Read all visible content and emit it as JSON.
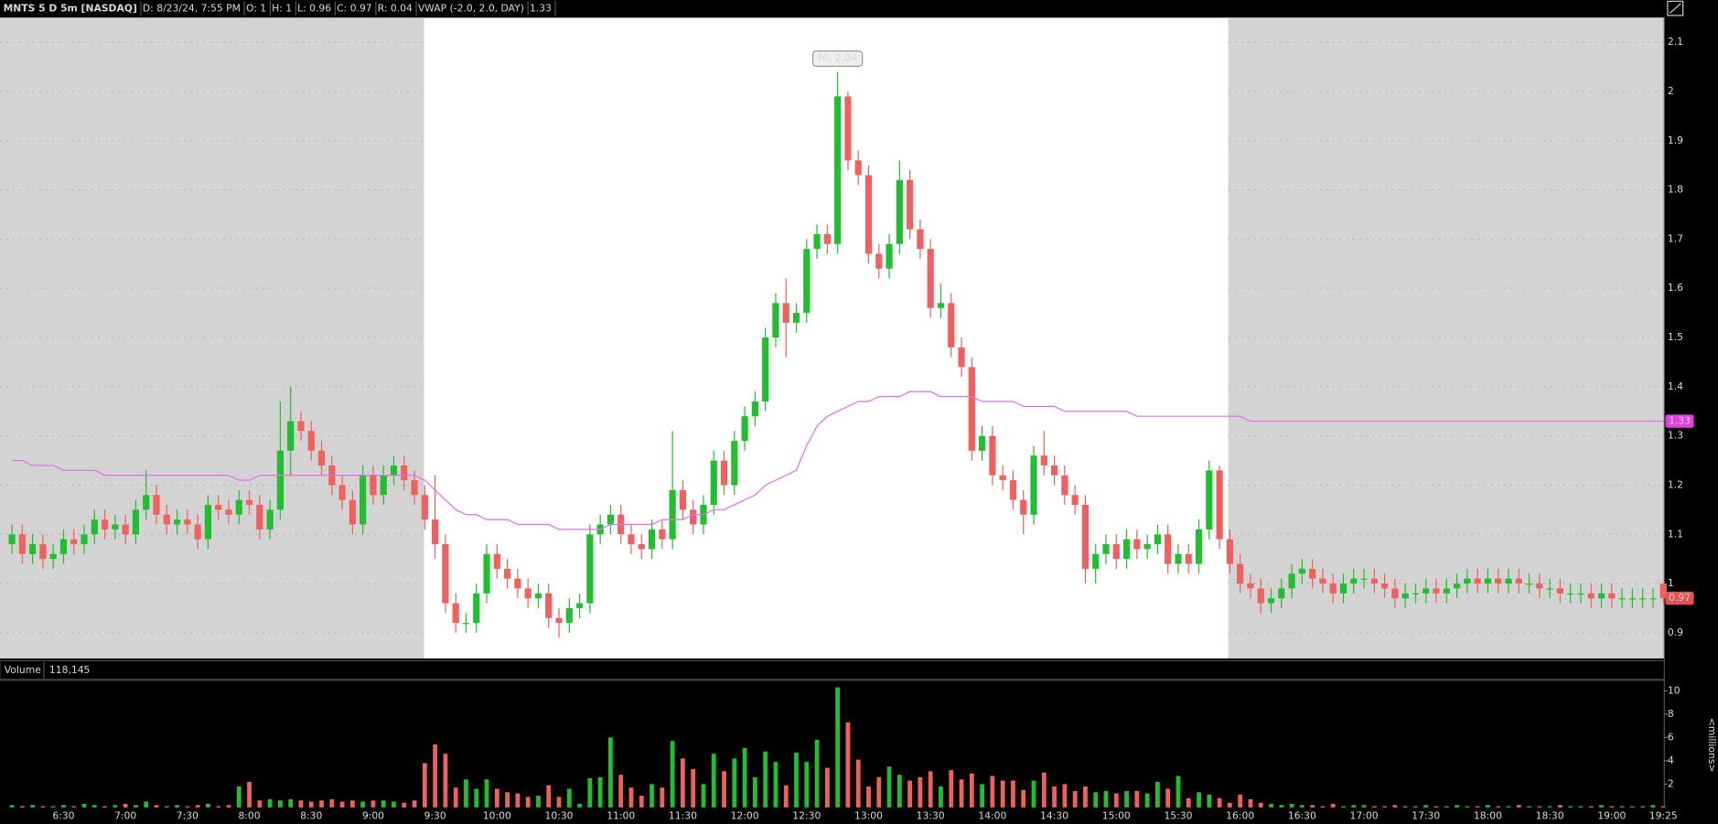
{
  "header": [
    {
      "text": "MNTS 5 D 5m [NASDAQ]",
      "color": "#ffffff"
    },
    {
      "text": "D: 8/23/24, 7:55 PM",
      "color": "#d0d0d0"
    },
    {
      "text": "O: 1",
      "color": "#d0d0d0"
    },
    {
      "text": "H: 1",
      "color": "#d0d0d0"
    },
    {
      "text": "L: 0.96",
      "color": "#d0d0d0"
    },
    {
      "text": "C: 0.97",
      "color": "#d0d0d0"
    },
    {
      "text": "R: 0.04",
      "color": "#d0d0d0"
    },
    {
      "text": "VWAP (-2.0, 2.0, DAY)",
      "color": "#e060e0"
    },
    {
      "text": "1.33",
      "color": "#e060e0"
    }
  ],
  "chart_data": [
    {
      "type": "candlestick",
      "up_color": "#1fbf2f",
      "down_color": "#f25f5f",
      "ylim": [
        0.85,
        2.15
      ],
      "yticks": [
        0.9,
        1,
        1.1,
        1.2,
        1.3,
        1.4,
        1.5,
        1.6,
        1.7,
        1.8,
        1.9,
        2,
        2.1
      ],
      "grid": true,
      "annotation": "Hi: 2.04",
      "price_tags": [
        {
          "value": 1.33,
          "color": "#e040e0"
        },
        {
          "value": 0.97,
          "color": "#e85050"
        }
      ],
      "vwap_color": "#e070e8",
      "open": [
        1.08,
        1.1,
        1.06,
        1.08,
        1.05,
        1.06,
        1.09,
        1.08,
        1.1,
        1.13,
        1.11,
        1.12,
        1.1,
        1.15,
        1.18,
        1.14,
        1.12,
        1.13,
        1.12,
        1.09,
        1.16,
        1.15,
        1.14,
        1.17,
        1.16,
        1.11,
        1.15,
        1.27,
        1.33,
        1.31,
        1.27,
        1.24,
        1.2,
        1.17,
        1.12,
        1.22,
        1.18,
        1.22,
        1.24,
        1.21,
        1.18,
        1.13,
        1.08,
        0.96,
        0.92,
        0.92,
        0.98,
        1.06,
        1.03,
        1.01,
        0.99,
        0.97,
        0.98,
        0.93,
        0.92,
        0.95,
        0.96,
        1.1,
        1.12,
        1.14,
        1.1,
        1.08,
        1.07,
        1.11,
        1.09,
        1.19,
        1.15,
        1.12,
        1.16,
        1.25,
        1.2,
        1.29,
        1.34,
        1.37,
        1.5,
        1.57,
        1.53,
        1.55,
        1.68,
        1.71,
        1.69,
        1.99,
        1.86,
        1.83,
        1.67,
        1.64,
        1.69,
        1.82,
        1.72,
        1.68,
        1.56,
        1.57,
        1.48,
        1.44,
        1.27,
        1.3,
        1.22,
        1.21,
        1.17,
        1.14,
        1.26,
        1.24,
        1.22,
        1.18,
        1.16,
        1.03,
        1.06,
        1.08,
        1.05,
        1.09,
        1.07,
        1.08,
        1.1,
        1.04,
        1.06,
        1.04,
        1.11,
        1.23,
        1.09,
        1.04,
        1.0,
        0.99,
        0.96,
        0.97,
        0.99,
        1.02,
        1.03,
        1.01,
        1.0,
        0.98,
        1.0,
        1.01,
        1.01,
        1.0,
        0.99,
        0.97,
        0.98,
        0.98,
        0.99,
        0.98,
        0.99,
        1.0,
        1.01,
        1.0,
        1.01,
        1.0,
        1.01,
        1.0,
        1.0,
        0.99,
        0.99,
        0.98,
        0.98,
        0.98,
        0.97,
        0.98,
        0.97,
        0.97,
        0.97,
        0.97,
        1.0
      ],
      "high": [
        1.12,
        1.12,
        1.1,
        1.1,
        1.08,
        1.11,
        1.11,
        1.12,
        1.15,
        1.15,
        1.14,
        1.14,
        1.17,
        1.23,
        1.2,
        1.16,
        1.15,
        1.15,
        1.14,
        1.18,
        1.18,
        1.17,
        1.19,
        1.19,
        1.18,
        1.17,
        1.37,
        1.4,
        1.35,
        1.33,
        1.29,
        1.26,
        1.22,
        1.19,
        1.24,
        1.24,
        1.24,
        1.26,
        1.26,
        1.23,
        1.2,
        1.22,
        1.1,
        0.98,
        0.94,
        1.0,
        1.08,
        1.08,
        1.05,
        1.03,
        1.01,
        1.0,
        1.0,
        0.95,
        0.97,
        0.98,
        1.12,
        1.14,
        1.16,
        1.16,
        1.12,
        1.1,
        1.13,
        1.13,
        1.31,
        1.21,
        1.17,
        1.18,
        1.27,
        1.27,
        1.31,
        1.36,
        1.39,
        1.52,
        1.59,
        1.62,
        1.57,
        1.7,
        1.73,
        1.73,
        2.04,
        2.0,
        1.88,
        1.85,
        1.69,
        1.71,
        1.86,
        1.84,
        1.74,
        1.7,
        1.61,
        1.59,
        1.5,
        1.46,
        1.32,
        1.32,
        1.24,
        1.23,
        1.19,
        1.28,
        1.31,
        1.26,
        1.24,
        1.2,
        1.18,
        1.08,
        1.1,
        1.1,
        1.11,
        1.11,
        1.1,
        1.12,
        1.12,
        1.08,
        1.08,
        1.13,
        1.25,
        1.24,
        1.11,
        1.06,
        1.02,
        1.01,
        0.99,
        1.01,
        1.04,
        1.05,
        1.05,
        1.03,
        1.02,
        1.02,
        1.03,
        1.03,
        1.03,
        1.02,
        1.01,
        1.0,
        1.0,
        1.01,
        1.01,
        1.01,
        1.02,
        1.03,
        1.03,
        1.03,
        1.03,
        1.03,
        1.03,
        1.02,
        1.02,
        1.01,
        1.01,
        1.0,
        1.0,
        1.0,
        1.0,
        1.0,
        0.99,
        0.99,
        0.99,
        0.99,
        1.0
      ],
      "low": [
        1.06,
        1.04,
        1.04,
        1.03,
        1.03,
        1.04,
        1.06,
        1.06,
        1.08,
        1.09,
        1.09,
        1.08,
        1.08,
        1.13,
        1.12,
        1.1,
        1.1,
        1.1,
        1.07,
        1.07,
        1.13,
        1.12,
        1.12,
        1.14,
        1.09,
        1.09,
        1.13,
        1.22,
        1.29,
        1.25,
        1.22,
        1.18,
        1.15,
        1.1,
        1.1,
        1.16,
        1.16,
        1.2,
        1.19,
        1.16,
        1.11,
        1.05,
        0.94,
        0.9,
        0.9,
        0.9,
        0.96,
        1.01,
        0.99,
        0.97,
        0.95,
        0.95,
        0.91,
        0.89,
        0.9,
        0.93,
        0.94,
        1.08,
        1.1,
        1.08,
        1.06,
        1.05,
        1.05,
        1.07,
        1.07,
        1.13,
        1.1,
        1.1,
        1.14,
        1.18,
        1.18,
        1.27,
        1.32,
        1.35,
        1.48,
        1.46,
        1.51,
        1.53,
        1.66,
        1.67,
        1.67,
        1.84,
        1.81,
        1.65,
        1.62,
        1.62,
        1.67,
        1.7,
        1.66,
        1.54,
        1.54,
        1.46,
        1.42,
        1.25,
        1.25,
        1.2,
        1.19,
        1.15,
        1.1,
        1.12,
        1.22,
        1.2,
        1.16,
        1.14,
        1.0,
        1.0,
        1.04,
        1.03,
        1.03,
        1.05,
        1.05,
        1.06,
        1.02,
        1.02,
        1.02,
        1.02,
        1.09,
        1.07,
        1.02,
        0.98,
        0.97,
        0.94,
        0.94,
        0.95,
        0.97,
        1.0,
        0.99,
        0.98,
        0.96,
        0.96,
        0.98,
        0.99,
        0.98,
        0.97,
        0.95,
        0.95,
        0.96,
        0.96,
        0.96,
        0.96,
        0.97,
        0.98,
        0.98,
        0.98,
        0.98,
        0.98,
        0.98,
        0.98,
        0.97,
        0.97,
        0.96,
        0.96,
        0.96,
        0.95,
        0.95,
        0.95,
        0.95,
        0.95,
        0.95,
        0.95,
        0.96
      ],
      "close": [
        1.1,
        1.06,
        1.08,
        1.05,
        1.06,
        1.09,
        1.08,
        1.1,
        1.13,
        1.11,
        1.12,
        1.1,
        1.15,
        1.18,
        1.14,
        1.12,
        1.13,
        1.12,
        1.09,
        1.16,
        1.15,
        1.14,
        1.17,
        1.16,
        1.11,
        1.15,
        1.27,
        1.33,
        1.31,
        1.27,
        1.24,
        1.2,
        1.17,
        1.12,
        1.22,
        1.18,
        1.22,
        1.24,
        1.21,
        1.18,
        1.13,
        1.08,
        0.96,
        0.92,
        0.92,
        0.98,
        1.06,
        1.03,
        1.01,
        0.99,
        0.97,
        0.98,
        0.93,
        0.92,
        0.95,
        0.96,
        1.1,
        1.12,
        1.14,
        1.1,
        1.08,
        1.07,
        1.11,
        1.09,
        1.19,
        1.15,
        1.12,
        1.16,
        1.25,
        1.2,
        1.29,
        1.34,
        1.37,
        1.5,
        1.57,
        1.53,
        1.55,
        1.68,
        1.71,
        1.69,
        1.99,
        1.86,
        1.83,
        1.67,
        1.64,
        1.69,
        1.82,
        1.72,
        1.68,
        1.56,
        1.57,
        1.48,
        1.44,
        1.27,
        1.3,
        1.22,
        1.21,
        1.17,
        1.14,
        1.26,
        1.24,
        1.22,
        1.18,
        1.16,
        1.03,
        1.06,
        1.08,
        1.05,
        1.09,
        1.07,
        1.08,
        1.1,
        1.04,
        1.06,
        1.04,
        1.11,
        1.23,
        1.09,
        1.04,
        1.0,
        0.99,
        0.96,
        0.97,
        0.99,
        1.02,
        1.03,
        1.01,
        1.0,
        0.98,
        1.0,
        1.01,
        1.01,
        1.0,
        0.99,
        0.97,
        0.98,
        0.98,
        0.99,
        0.98,
        0.99,
        1.0,
        1.01,
        1.0,
        1.01,
        1.0,
        1.01,
        1.0,
        1.0,
        0.99,
        0.99,
        0.98,
        0.98,
        0.98,
        0.97,
        0.98,
        0.97,
        0.97,
        0.97,
        0.97,
        0.97,
        0.97
      ],
      "vwap": [
        1.25,
        1.25,
        1.24,
        1.24,
        1.24,
        1.23,
        1.23,
        1.23,
        1.23,
        1.22,
        1.22,
        1.22,
        1.22,
        1.22,
        1.22,
        1.22,
        1.22,
        1.22,
        1.22,
        1.22,
        1.22,
        1.22,
        1.21,
        1.21,
        1.22,
        1.22,
        1.22,
        1.22,
        1.22,
        1.22,
        1.22,
        1.22,
        1.22,
        1.22,
        1.22,
        1.22,
        1.22,
        1.22,
        1.22,
        1.22,
        1.21,
        1.19,
        1.17,
        1.15,
        1.14,
        1.14,
        1.13,
        1.13,
        1.13,
        1.12,
        1.12,
        1.12,
        1.12,
        1.11,
        1.11,
        1.11,
        1.11,
        1.11,
        1.12,
        1.12,
        1.12,
        1.12,
        1.12,
        1.13,
        1.13,
        1.13,
        1.14,
        1.14,
        1.15,
        1.15,
        1.16,
        1.17,
        1.18,
        1.2,
        1.21,
        1.22,
        1.23,
        1.28,
        1.32,
        1.34,
        1.35,
        1.36,
        1.37,
        1.37,
        1.38,
        1.38,
        1.38,
        1.39,
        1.39,
        1.39,
        1.38,
        1.38,
        1.38,
        1.38,
        1.37,
        1.37,
        1.37,
        1.37,
        1.36,
        1.36,
        1.36,
        1.36,
        1.35,
        1.35,
        1.35,
        1.35,
        1.35,
        1.35,
        1.35,
        1.34,
        1.34,
        1.34,
        1.34,
        1.34,
        1.34,
        1.34,
        1.34,
        1.34,
        1.34,
        1.34,
        1.33,
        1.33,
        1.33,
        1.33,
        1.33,
        1.33,
        1.33,
        1.33,
        1.33,
        1.33,
        1.33,
        1.33,
        1.33,
        1.33,
        1.33,
        1.33,
        1.33,
        1.33,
        1.33,
        1.33,
        1.33,
        1.33,
        1.33,
        1.33,
        1.33,
        1.33,
        1.33,
        1.33,
        1.33,
        1.33,
        1.33,
        1.33,
        1.33,
        1.33,
        1.33,
        1.33,
        1.33,
        1.33,
        1.33,
        1.33,
        1.33
      ]
    },
    {
      "type": "bar",
      "title": "Volume",
      "subtitle": "118,145",
      "y_label": "<millions>",
      "ylim": [
        0,
        10.9
      ],
      "yticks": [
        2,
        4,
        6,
        8,
        10
      ],
      "categories": [
        null,
        null,
        null,
        null,
        null,
        "6:30",
        null,
        null,
        null,
        null,
        null,
        "7:00",
        null,
        null,
        null,
        null,
        null,
        "7:30",
        null,
        null,
        null,
        null,
        null,
        "8:00",
        null,
        null,
        null,
        null,
        null,
        "8:30",
        null,
        null,
        null,
        null,
        null,
        "9:00",
        null,
        null,
        null,
        null,
        null,
        "9:30",
        null,
        null,
        null,
        null,
        null,
        "10:00",
        null,
        null,
        null,
        null,
        null,
        "10:30",
        null,
        null,
        null,
        null,
        null,
        "11:00",
        null,
        null,
        null,
        null,
        null,
        "11:30",
        null,
        null,
        null,
        null,
        null,
        "12:00",
        null,
        null,
        null,
        null,
        null,
        "12:30",
        null,
        null,
        null,
        null,
        null,
        "13:00",
        null,
        null,
        null,
        null,
        null,
        "13:30",
        null,
        null,
        null,
        null,
        null,
        "14:00",
        null,
        null,
        null,
        null,
        null,
        "14:30",
        null,
        null,
        null,
        null,
        null,
        "15:00",
        null,
        null,
        null,
        null,
        null,
        "15:30",
        null,
        null,
        null,
        null,
        null,
        "16:00",
        null,
        null,
        null,
        null,
        null,
        "16:30",
        null,
        null,
        null,
        null,
        null,
        "17:00",
        null,
        null,
        null,
        null,
        null,
        "17:30",
        null,
        null,
        null,
        null,
        null,
        "18:00",
        null,
        null,
        null,
        null,
        null,
        "18:30",
        null,
        null,
        null,
        null,
        null,
        "19:00",
        null,
        null,
        null,
        null,
        "19:25"
      ],
      "values": [
        0.2,
        0.1,
        0.2,
        0.1,
        0.1,
        0.2,
        0.1,
        0.3,
        0.2,
        0.1,
        0.2,
        0.3,
        0.2,
        0.5,
        0.2,
        0.1,
        0.2,
        0.1,
        0.2,
        0.3,
        0.1,
        0.2,
        1.8,
        2.2,
        0.6,
        0.7,
        0.6,
        0.7,
        0.6,
        0.5,
        0.6,
        0.7,
        0.5,
        0.6,
        0.5,
        0.6,
        0.6,
        0.5,
        0.4,
        0.6,
        3.8,
        5.4,
        4.6,
        1.7,
        2.4,
        1.6,
        2.4,
        1.6,
        1.3,
        1.2,
        0.9,
        1.0,
        1.9,
        0.9,
        1.6,
        0.3,
        2.5,
        2.6,
        6.0,
        2.8,
        1.7,
        1.0,
        2.0,
        1.7,
        5.7,
        4.2,
        3.3,
        2.0,
        4.6,
        3.1,
        4.2,
        5.1,
        2.6,
        4.8,
        3.9,
        1.9,
        4.7,
        3.9,
        5.8,
        3.4,
        10.3,
        7.3,
        4.1,
        1.8,
        2.6,
        3.5,
        2.8,
        2.3,
        2.6,
        3.1,
        1.8,
        3.2,
        2.4,
        2.9,
        2.0,
        2.7,
        2.3,
        2.3,
        1.5,
        2.3,
        3.0,
        1.8,
        2.0,
        1.4,
        1.8,
        1.3,
        1.4,
        1.2,
        1.4,
        1.4,
        1.2,
        2.2,
        1.6,
        2.7,
        0.8,
        1.3,
        1.1,
        0.8,
        0.4,
        1.1,
        0.7,
        0.4,
        0.3,
        0.2,
        0.3,
        0.2,
        0.2,
        0.1,
        0.3,
        0.1,
        0.2,
        0.2,
        0.1,
        0.1,
        0.2,
        0.1,
        0.1,
        0.2,
        0.1,
        0.1,
        0.2,
        0.1,
        0.1,
        0.2,
        0.1,
        0.1,
        0.2,
        0.1,
        0.1,
        0.1,
        0.2,
        0.1,
        0.1,
        0.1,
        0.2,
        0.1,
        0.1,
        0.1,
        0.1,
        0.2,
        0.1
      ]
    }
  ]
}
